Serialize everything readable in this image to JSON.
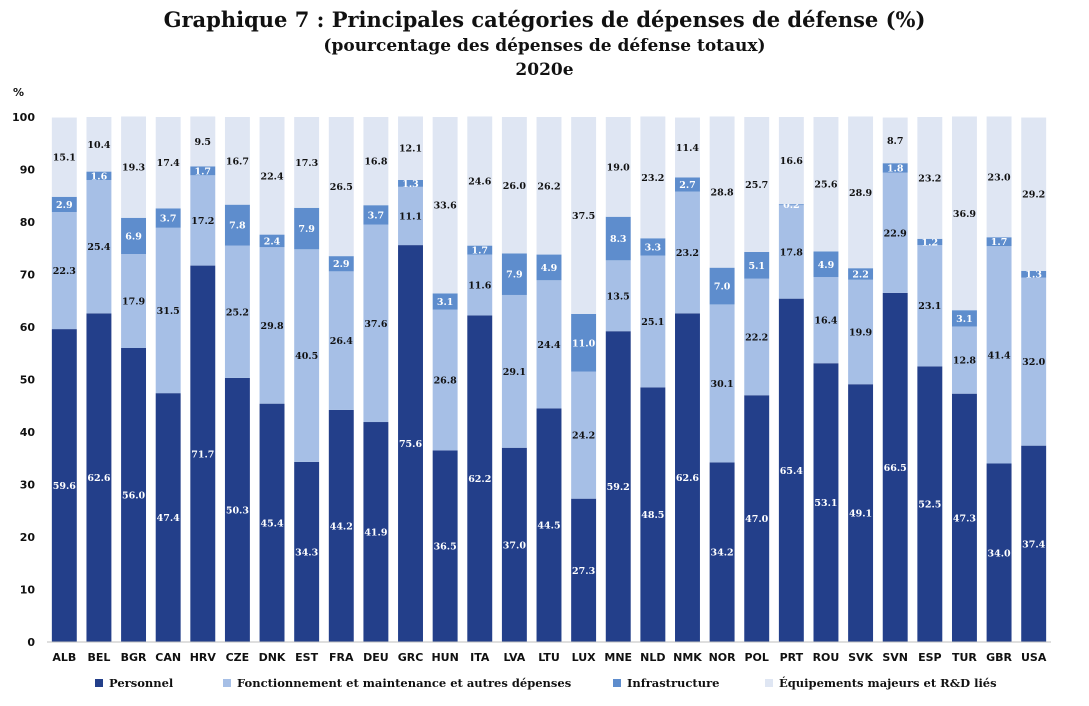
{
  "chart_data": {
    "type": "bar",
    "stacked": true,
    "title": "Graphique 7 : Principales catégories de dépenses de défense (%)",
    "subtitle": "(pourcentage des dépenses de défense totaux)",
    "subtitle2": "2020e",
    "ylabel": "%",
    "ylim": [
      0,
      100
    ],
    "yticks": [
      0,
      10,
      20,
      30,
      40,
      50,
      60,
      70,
      80,
      90,
      100
    ],
    "grid": false,
    "legend_position": "bottom",
    "categories": [
      "ALB",
      "BEL",
      "BGR",
      "CAN",
      "HRV",
      "CZE",
      "DNK",
      "EST",
      "FRA",
      "DEU",
      "GRC",
      "HUN",
      "ITA",
      "LVA",
      "LTU",
      "LUX",
      "MNE",
      "NLD",
      "NMK",
      "NOR",
      "POL",
      "PRT",
      "ROU",
      "SVK",
      "SVN",
      "ESP",
      "TUR",
      "GBR",
      "USA"
    ],
    "series": [
      {
        "name": "Personnel",
        "color": "#233f8a",
        "label_color": "#ffffff",
        "values": [
          59.6,
          62.6,
          56.0,
          47.4,
          71.7,
          50.3,
          45.4,
          34.3,
          44.2,
          41.9,
          75.6,
          36.5,
          62.2,
          37.0,
          44.5,
          27.3,
          59.2,
          48.5,
          62.6,
          34.2,
          47.0,
          65.4,
          53.1,
          49.1,
          66.5,
          52.5,
          47.3,
          34.0,
          37.4
        ]
      },
      {
        "name": "Fonctionnement et maintenance et autres dépenses",
        "color": "#a6bfe6",
        "label_color": "#111111",
        "values": [
          22.3,
          25.4,
          17.9,
          31.5,
          17.2,
          25.2,
          29.8,
          40.5,
          26.4,
          37.6,
          11.1,
          26.8,
          11.6,
          29.1,
          24.4,
          24.2,
          13.5,
          25.1,
          23.2,
          30.1,
          22.2,
          17.8,
          16.4,
          19.9,
          22.9,
          23.1,
          12.8,
          41.4,
          32.0
        ]
      },
      {
        "name": "Infrastructure",
        "color": "#5e8dcd",
        "label_color": "#ffffff",
        "values": [
          2.9,
          1.6,
          6.9,
          3.7,
          1.7,
          7.8,
          2.4,
          7.9,
          2.9,
          3.7,
          1.3,
          3.1,
          1.7,
          7.9,
          4.9,
          11.0,
          8.3,
          3.3,
          2.7,
          7.0,
          5.1,
          0.2,
          4.9,
          2.2,
          1.8,
          1.2,
          3.1,
          1.7,
          1.3
        ]
      },
      {
        "name": "Équipements majeurs et R&D liés",
        "color": "#dfe6f3",
        "label_color": "#111111",
        "values": [
          15.1,
          10.4,
          19.3,
          17.4,
          9.5,
          16.7,
          22.4,
          17.3,
          26.5,
          16.8,
          12.1,
          33.6,
          24.6,
          26.0,
          26.2,
          37.5,
          19.0,
          23.2,
          11.4,
          28.8,
          25.7,
          16.6,
          25.6,
          28.9,
          8.7,
          23.2,
          36.9,
          23.0,
          29.2
        ]
      }
    ]
  }
}
